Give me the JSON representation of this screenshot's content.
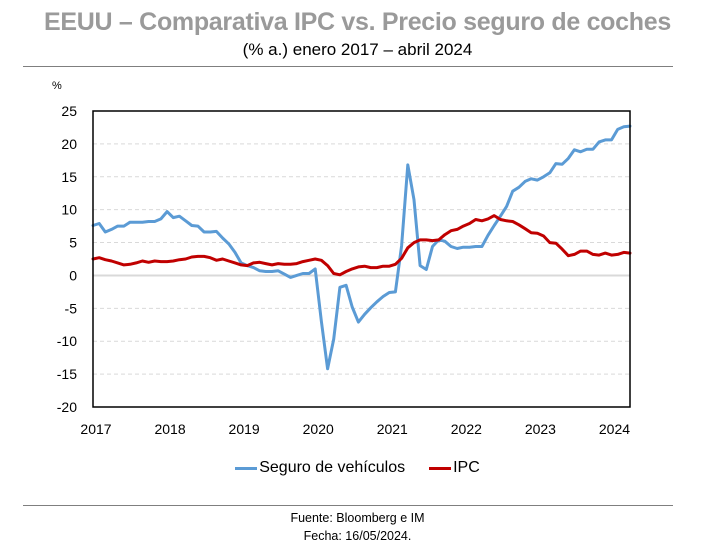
{
  "title": "EEUU – Comparativa IPC vs. Precio seguro de coches",
  "subtitle": "(% a.) enero 2017 – abril 2024",
  "footer": {
    "source": "Fuente: Bloomberg e IM",
    "date": "Fecha: 16/05/2024."
  },
  "chart_data": {
    "type": "line",
    "title": "EEUU – Comparativa IPC vs. Precio seguro de coches",
    "subtitle": "(% a.) enero 2017 – abril 2024",
    "ylabel": "%",
    "xlabel": "",
    "ylim": [
      -20,
      25
    ],
    "yticks": [
      "25",
      "20",
      "15",
      "10",
      "5",
      "0",
      "-5",
      "-10",
      "-15",
      "-20"
    ],
    "ytick_values": [
      25,
      20,
      15,
      10,
      5,
      0,
      -5,
      -10,
      -15,
      -20
    ],
    "xtick_labels": [
      "2017",
      "2018",
      "2019",
      "2020",
      "2021",
      "2022",
      "2023",
      "2024"
    ],
    "x_start": "2017-01",
    "x_end": "2024-04",
    "x_frequency": "monthly",
    "grid": "horizontal dashed",
    "legend_position": "bottom",
    "series": [
      {
        "name": "Seguro de vehículos",
        "color": "#5b9bd5",
        "values": [
          7.6,
          7.9,
          6.6,
          7.0,
          7.5,
          7.5,
          8.1,
          8.1,
          8.1,
          8.2,
          8.2,
          8.6,
          9.7,
          8.8,
          9.0,
          8.3,
          7.6,
          7.5,
          6.6,
          6.6,
          6.7,
          5.7,
          4.8,
          3.5,
          1.9,
          1.5,
          1.2,
          0.7,
          0.6,
          0.6,
          0.7,
          0.2,
          -0.3,
          0.0,
          0.3,
          0.3,
          1.0,
          -7.0,
          -14.2,
          -9.7,
          -1.8,
          -1.5,
          -4.8,
          -7.1,
          -5.9,
          -4.9,
          -4.0,
          -3.2,
          -2.6,
          -2.5,
          4.5,
          16.8,
          11.5,
          1.5,
          0.9,
          4.4,
          5.4,
          5.2,
          4.4,
          4.1,
          4.3,
          4.3,
          4.4,
          4.4,
          6.1,
          7.6,
          9.0,
          10.5,
          12.8,
          13.4,
          14.3,
          14.7,
          14.5,
          15.0,
          15.6,
          17.0,
          16.9,
          17.8,
          19.1,
          18.8,
          19.2,
          19.2,
          20.3,
          20.6,
          20.6,
          22.2,
          22.6,
          22.7
        ]
      },
      {
        "name": "IPC",
        "color": "#c00000",
        "values": [
          2.5,
          2.7,
          2.4,
          2.2,
          1.9,
          1.6,
          1.7,
          1.9,
          2.2,
          2.0,
          2.2,
          2.1,
          2.1,
          2.2,
          2.4,
          2.5,
          2.8,
          2.9,
          2.9,
          2.7,
          2.3,
          2.5,
          2.2,
          1.9,
          1.6,
          1.5,
          1.9,
          2.0,
          1.8,
          1.6,
          1.8,
          1.7,
          1.7,
          1.8,
          2.1,
          2.3,
          2.5,
          2.3,
          1.5,
          0.3,
          0.1,
          0.6,
          1.0,
          1.3,
          1.4,
          1.2,
          1.2,
          1.4,
          1.4,
          1.7,
          2.6,
          4.2,
          5.0,
          5.4,
          5.4,
          5.3,
          5.4,
          6.2,
          6.8,
          7.0,
          7.5,
          7.9,
          8.5,
          8.3,
          8.6,
          9.1,
          8.5,
          8.3,
          8.2,
          7.7,
          7.1,
          6.5,
          6.4,
          6.0,
          5.0,
          4.9,
          4.0,
          3.0,
          3.2,
          3.7,
          3.7,
          3.2,
          3.1,
          3.4,
          3.1,
          3.2,
          3.5,
          3.4
        ]
      }
    ]
  }
}
